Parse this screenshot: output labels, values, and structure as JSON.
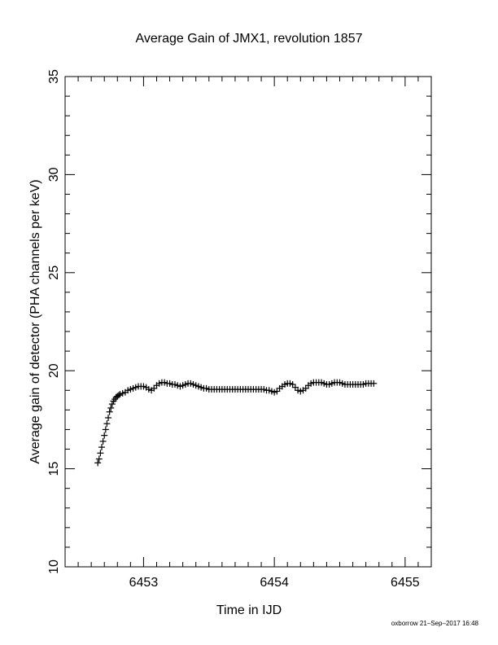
{
  "chart_data": {
    "type": "scatter",
    "title": "Average Gain of JMX1, revolution 1857",
    "xlabel": "Time in IJD",
    "ylabel": "Average gain of detector (PHA channels per keV)",
    "xlim": [
      6452.4,
      6455.2
    ],
    "ylim": [
      10,
      35
    ],
    "x_ticks": [
      "6453",
      "6454",
      "6455"
    ],
    "y_ticks": [
      "10",
      "15",
      "20",
      "25",
      "30",
      "35"
    ],
    "grid": false,
    "marker": "plus",
    "x": [
      6452.65,
      6452.66,
      6452.67,
      6452.68,
      6452.69,
      6452.7,
      6452.71,
      6452.72,
      6452.73,
      6452.74,
      6452.75,
      6452.76,
      6452.77,
      6452.78,
      6452.79,
      6452.8,
      6452.81,
      6452.82,
      6452.84,
      6452.86,
      6452.88,
      6452.9,
      6452.92,
      6452.94,
      6452.96,
      6452.98,
      6453.0,
      6453.02,
      6453.04,
      6453.06,
      6453.08,
      6453.1,
      6453.12,
      6453.14,
      6453.16,
      6453.18,
      6453.2,
      6453.22,
      6453.24,
      6453.26,
      6453.28,
      6453.3,
      6453.32,
      6453.34,
      6453.36,
      6453.38,
      6453.4,
      6453.42,
      6453.44,
      6453.46,
      6453.48,
      6453.5,
      6453.52,
      6453.54,
      6453.56,
      6453.58,
      6453.6,
      6453.62,
      6453.64,
      6453.66,
      6453.68,
      6453.7,
      6453.72,
      6453.74,
      6453.76,
      6453.78,
      6453.8,
      6453.82,
      6453.84,
      6453.86,
      6453.88,
      6453.9,
      6453.92,
      6453.94,
      6453.96,
      6453.98,
      6454.0,
      6454.02,
      6454.04,
      6454.06,
      6454.08,
      6454.1,
      6454.12,
      6454.14,
      6454.16,
      6454.18,
      6454.2,
      6454.22,
      6454.24,
      6454.26,
      6454.28,
      6454.3,
      6454.32,
      6454.34,
      6454.36,
      6454.38,
      6454.4,
      6454.42,
      6454.44,
      6454.46,
      6454.48,
      6454.5,
      6454.52,
      6454.54,
      6454.56,
      6454.58,
      6454.6,
      6454.62,
      6454.64,
      6454.66,
      6454.68,
      6454.7,
      6454.72,
      6454.74,
      6454.76
    ],
    "y": [
      15.3,
      15.5,
      15.8,
      16.1,
      16.4,
      16.7,
      17.0,
      17.3,
      17.6,
      17.9,
      18.1,
      18.3,
      18.45,
      18.55,
      18.65,
      18.7,
      18.75,
      18.8,
      18.85,
      18.9,
      19.0,
      19.05,
      19.1,
      19.15,
      19.2,
      19.2,
      19.2,
      19.15,
      19.05,
      19.0,
      19.1,
      19.25,
      19.35,
      19.4,
      19.4,
      19.35,
      19.35,
      19.3,
      19.3,
      19.25,
      19.2,
      19.25,
      19.3,
      19.35,
      19.35,
      19.3,
      19.25,
      19.2,
      19.15,
      19.1,
      19.1,
      19.05,
      19.05,
      19.05,
      19.05,
      19.05,
      19.05,
      19.05,
      19.05,
      19.05,
      19.05,
      19.05,
      19.05,
      19.05,
      19.05,
      19.05,
      19.05,
      19.05,
      19.05,
      19.05,
      19.05,
      19.05,
      19.05,
      19.0,
      19.0,
      18.95,
      18.9,
      18.95,
      19.1,
      19.2,
      19.3,
      19.35,
      19.35,
      19.3,
      19.15,
      19.0,
      18.95,
      19.0,
      19.1,
      19.25,
      19.35,
      19.4,
      19.4,
      19.4,
      19.4,
      19.35,
      19.3,
      19.3,
      19.35,
      19.4,
      19.4,
      19.4,
      19.35,
      19.3,
      19.3,
      19.3,
      19.3,
      19.3,
      19.3,
      19.3,
      19.3,
      19.35,
      19.35,
      19.35,
      19.35
    ]
  },
  "footer_note": "oxborrow 21–Sep–2017 16:48"
}
